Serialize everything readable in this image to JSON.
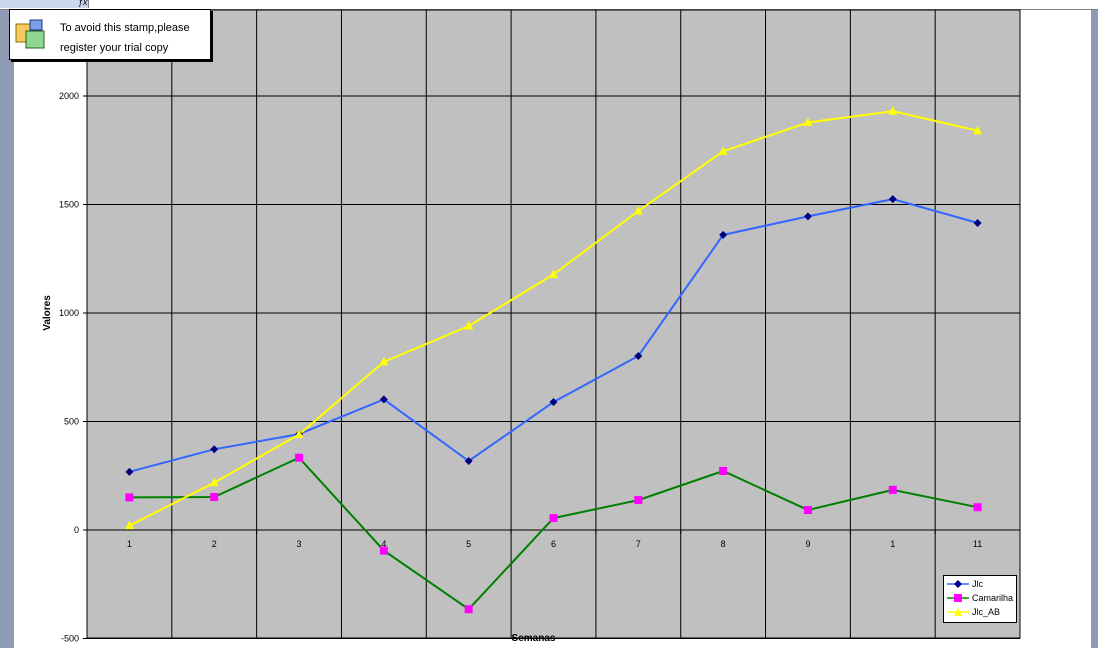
{
  "stamp": {
    "line1": "To avoid this stamp,please",
    "line2": "register your trial copy"
  },
  "chart_data": {
    "type": "line",
    "title": "",
    "xlabel": "Semanas",
    "ylabel": "Valores",
    "categories": [
      "1",
      "2",
      "3",
      "4",
      "5",
      "6",
      "7",
      "8",
      "9",
      "1",
      "11"
    ],
    "ylim": [
      -500,
      2000
    ],
    "yticks": [
      -500,
      0,
      500,
      1000,
      1500,
      2000
    ],
    "grid": true,
    "legend_position": "bottom-right",
    "plot_background": "#c0c0c0",
    "series": [
      {
        "name": "Jlc",
        "color": "#3366ff",
        "marker_color": "#000080",
        "marker": "diamond",
        "values": [
          268,
          372,
          442,
          602,
          318,
          590,
          802,
          1360,
          1445,
          1525,
          1415
        ]
      },
      {
        "name": "Camarilha",
        "color": "#008000",
        "marker_color": "#ff00ff",
        "marker": "square",
        "values": [
          150,
          152,
          333,
          -95,
          -365,
          55,
          138,
          272,
          92,
          185,
          105
        ]
      },
      {
        "name": "Jlc_AB",
        "color": "#ffff00",
        "marker_color": "#ffff00",
        "marker": "triangle",
        "values": [
          20,
          218,
          440,
          775,
          940,
          1178,
          1470,
          1745,
          1878,
          1930,
          1840
        ]
      }
    ]
  }
}
